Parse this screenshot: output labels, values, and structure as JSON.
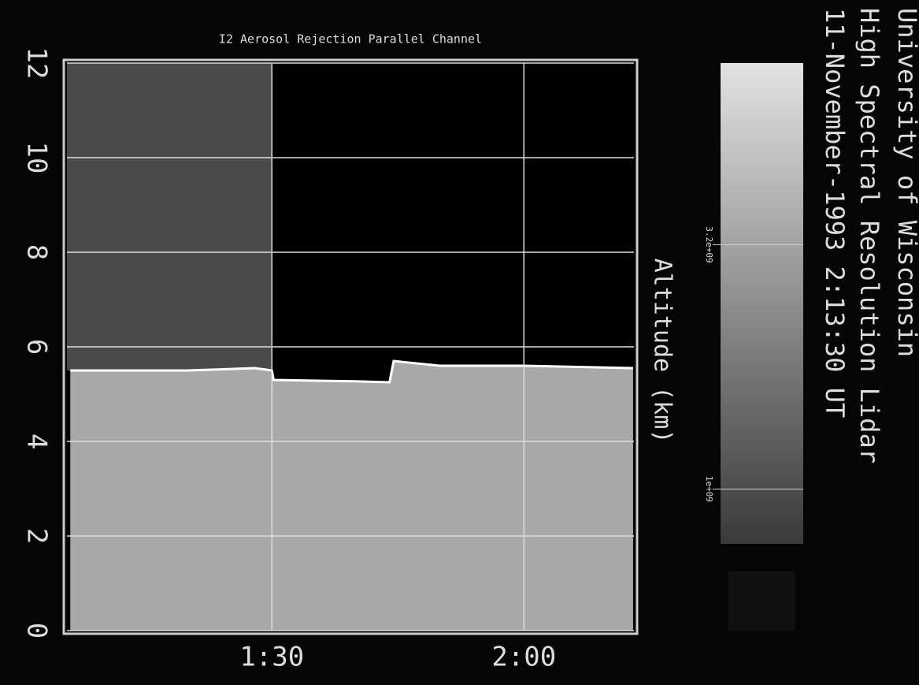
{
  "chart_data": {
    "type": "lidar",
    "title": "I2 Aerosol Rejection Parallel Channel",
    "y_label": "Altitude (km)",
    "header": [
      "University of Wisconsin",
      "High Spectral Resolution Lidar",
      "11-November-1993 2:13:30 UT"
    ],
    "x": [
      66,
      80,
      88,
      90,
      90.2,
      100,
      104,
      104.5,
      110,
      120,
      133
    ],
    "values": [
      5.5,
      5.5,
      5.55,
      5.5,
      5.3,
      5.27,
      5.25,
      5.7,
      5.6,
      5.6,
      5.55
    ],
    "color": "#ffffff",
    "xlim": [
      65.6,
      133.1
    ],
    "xticks": [
      {
        "value": 90,
        "label": "1:30"
      },
      {
        "value": 120,
        "label": "2:00"
      }
    ],
    "ylim": [
      0,
      12
    ],
    "yticks": [
      0,
      2,
      4,
      6,
      8,
      10,
      12
    ],
    "grid": true,
    "colorbar": {
      "log": true,
      "clim": [
        770000000,
        7600000000
      ],
      "ticks": [
        {
          "value": 3200000000,
          "label": "3.2e+09"
        },
        {
          "value": 1000000000,
          "label": "1e+09"
        }
      ]
    }
  }
}
